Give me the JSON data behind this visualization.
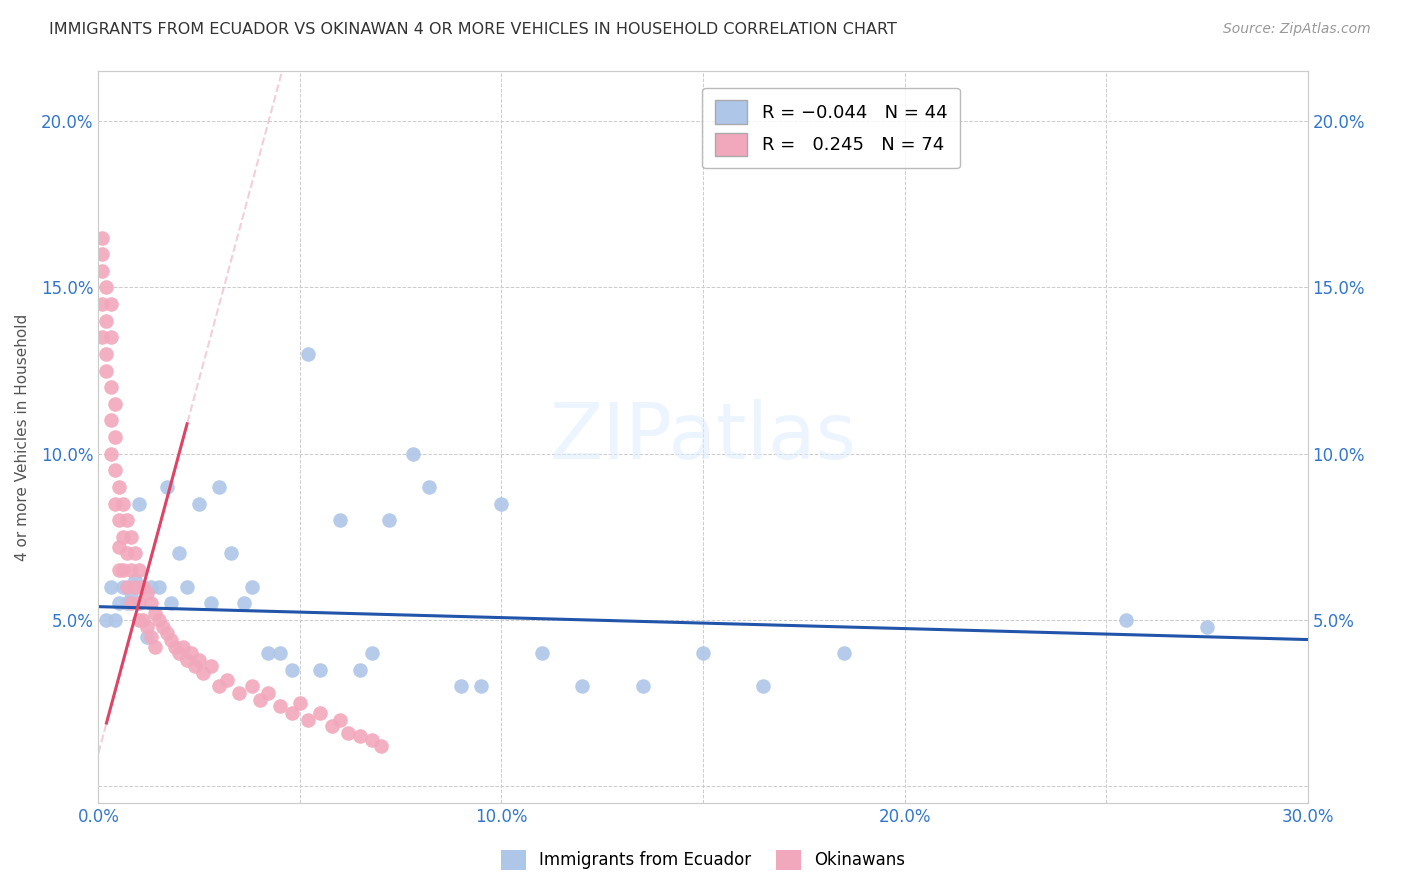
{
  "title": "IMMIGRANTS FROM ECUADOR VS OKINAWAN 4 OR MORE VEHICLES IN HOUSEHOLD CORRELATION CHART",
  "source": "Source: ZipAtlas.com",
  "ylabel": "4 or more Vehicles in Household",
  "xlim": [
    0.0,
    0.3
  ],
  "ylim": [
    -0.005,
    0.215
  ],
  "xticks": [
    0.0,
    0.05,
    0.1,
    0.15,
    0.2,
    0.25,
    0.3
  ],
  "xticklabels": [
    "0.0%",
    "",
    "10.0%",
    "",
    "20.0%",
    "",
    "30.0%"
  ],
  "yticks": [
    0.0,
    0.05,
    0.1,
    0.15,
    0.2
  ],
  "yticklabels": [
    "",
    "5.0%",
    "10.0%",
    "15.0%",
    "20.0%"
  ],
  "blue_color": "#aec6e8",
  "pink_color": "#f2a8bc",
  "blue_line_color": "#2255aa",
  "pink_line_color": "#dd4466",
  "pink_dash_color": "#e8b0c0",
  "watermark": "ZIPatlas",
  "ecuador_x": [
    0.002,
    0.003,
    0.004,
    0.005,
    0.006,
    0.007,
    0.008,
    0.009,
    0.01,
    0.012,
    0.013,
    0.015,
    0.017,
    0.018,
    0.02,
    0.022,
    0.025,
    0.028,
    0.03,
    0.033,
    0.036,
    0.038,
    0.042,
    0.045,
    0.048,
    0.052,
    0.055,
    0.06,
    0.065,
    0.068,
    0.072,
    0.078,
    0.082,
    0.09,
    0.095,
    0.1,
    0.11,
    0.12,
    0.135,
    0.15,
    0.165,
    0.185,
    0.255,
    0.275
  ],
  "ecuador_y": [
    0.05,
    0.06,
    0.05,
    0.055,
    0.06,
    0.055,
    0.058,
    0.062,
    0.085,
    0.045,
    0.06,
    0.06,
    0.09,
    0.055,
    0.07,
    0.06,
    0.085,
    0.055,
    0.09,
    0.07,
    0.055,
    0.06,
    0.04,
    0.04,
    0.035,
    0.13,
    0.035,
    0.08,
    0.035,
    0.04,
    0.08,
    0.1,
    0.09,
    0.03,
    0.03,
    0.085,
    0.04,
    0.03,
    0.03,
    0.04,
    0.03,
    0.04,
    0.05,
    0.048
  ],
  "okinawa_x": [
    0.001,
    0.001,
    0.001,
    0.001,
    0.001,
    0.002,
    0.002,
    0.002,
    0.002,
    0.003,
    0.003,
    0.003,
    0.003,
    0.003,
    0.004,
    0.004,
    0.004,
    0.004,
    0.005,
    0.005,
    0.005,
    0.005,
    0.006,
    0.006,
    0.006,
    0.007,
    0.007,
    0.007,
    0.008,
    0.008,
    0.008,
    0.009,
    0.009,
    0.01,
    0.01,
    0.01,
    0.011,
    0.011,
    0.012,
    0.012,
    0.013,
    0.013,
    0.014,
    0.014,
    0.015,
    0.016,
    0.017,
    0.018,
    0.019,
    0.02,
    0.021,
    0.022,
    0.023,
    0.024,
    0.025,
    0.026,
    0.028,
    0.03,
    0.032,
    0.035,
    0.038,
    0.04,
    0.042,
    0.045,
    0.048,
    0.05,
    0.052,
    0.055,
    0.058,
    0.06,
    0.062,
    0.065,
    0.068,
    0.07
  ],
  "okinawa_y": [
    0.16,
    0.165,
    0.155,
    0.145,
    0.135,
    0.15,
    0.14,
    0.13,
    0.125,
    0.145,
    0.135,
    0.12,
    0.11,
    0.1,
    0.115,
    0.105,
    0.095,
    0.085,
    0.09,
    0.08,
    0.072,
    0.065,
    0.085,
    0.075,
    0.065,
    0.08,
    0.07,
    0.06,
    0.075,
    0.065,
    0.055,
    0.07,
    0.06,
    0.065,
    0.055,
    0.05,
    0.06,
    0.05,
    0.058,
    0.048,
    0.055,
    0.045,
    0.052,
    0.042,
    0.05,
    0.048,
    0.046,
    0.044,
    0.042,
    0.04,
    0.042,
    0.038,
    0.04,
    0.036,
    0.038,
    0.034,
    0.036,
    0.03,
    0.032,
    0.028,
    0.03,
    0.026,
    0.028,
    0.024,
    0.022,
    0.025,
    0.02,
    0.022,
    0.018,
    0.02,
    0.016,
    0.015,
    0.014,
    0.012
  ]
}
